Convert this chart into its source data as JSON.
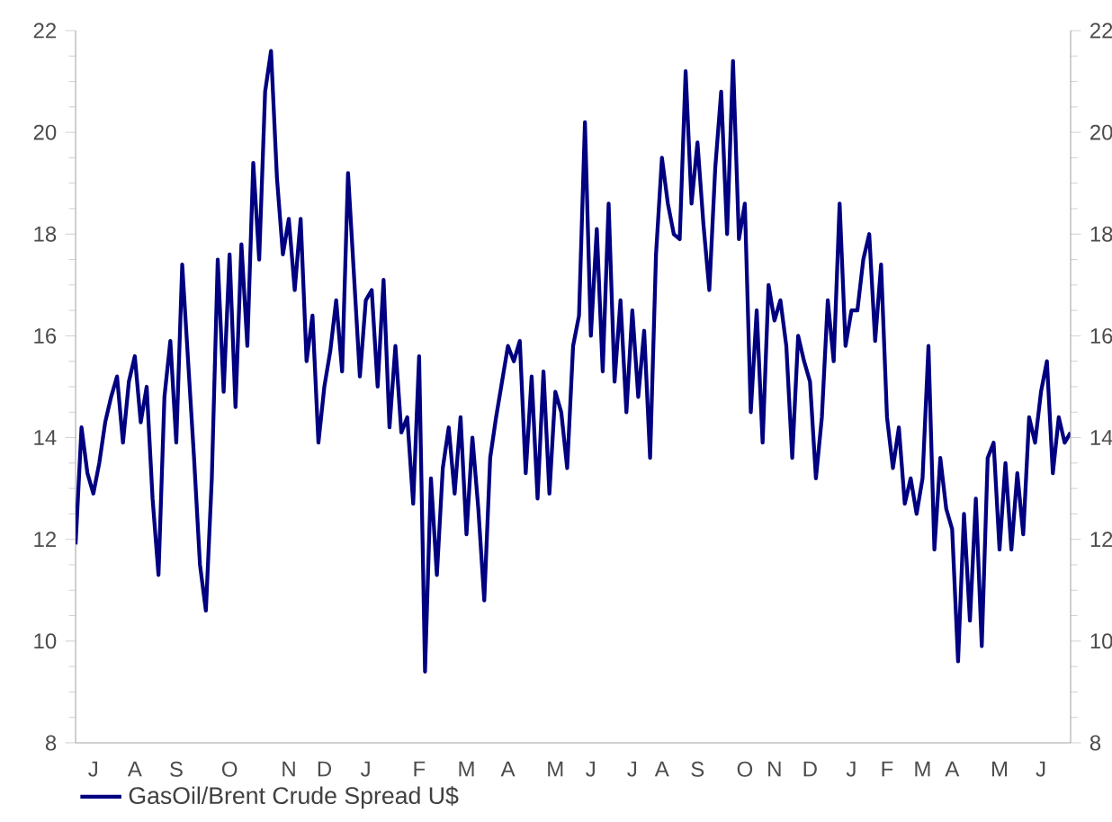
{
  "chart_data": {
    "type": "line",
    "categories": [
      null,
      null,
      null,
      "J",
      null,
      null,
      null,
      null,
      null,
      null,
      "A",
      null,
      null,
      null,
      null,
      null,
      null,
      "S",
      null,
      null,
      null,
      null,
      null,
      null,
      null,
      null,
      "O",
      null,
      null,
      null,
      null,
      null,
      null,
      null,
      null,
      null,
      "N",
      null,
      null,
      null,
      null,
      null,
      "D",
      null,
      null,
      null,
      null,
      null,
      null,
      "J",
      null,
      null,
      null,
      null,
      null,
      null,
      null,
      null,
      "F",
      null,
      null,
      null,
      null,
      null,
      null,
      null,
      "M",
      null,
      null,
      null,
      null,
      null,
      null,
      "A",
      null,
      null,
      null,
      null,
      null,
      null,
      null,
      "M",
      null,
      null,
      null,
      null,
      null,
      "J",
      null,
      null,
      null,
      null,
      null,
      null,
      "J",
      null,
      null,
      null,
      null,
      "A",
      null,
      null,
      null,
      null,
      null,
      "S",
      null,
      null,
      null,
      null,
      null,
      null,
      null,
      "O",
      null,
      null,
      null,
      null,
      "N",
      null,
      null,
      null,
      null,
      null,
      "D",
      null,
      null,
      null,
      null,
      null,
      null,
      "J",
      null,
      null,
      null,
      null,
      null,
      "F",
      null,
      null,
      null,
      null,
      null,
      "M",
      null,
      null,
      null,
      null,
      "A",
      null,
      null,
      null,
      null,
      null,
      null,
      null,
      "M",
      null,
      null,
      null,
      null,
      null,
      null,
      "J",
      null,
      null,
      null,
      null,
      null
    ],
    "series": [
      {
        "name": "GasOil/Brent Crude Spread U$",
        "color": "#000080",
        "values": [
          11.9,
          14.2,
          13.3,
          12.9,
          13.5,
          14.3,
          14.8,
          15.2,
          13.9,
          15.1,
          15.6,
          14.3,
          15.0,
          12.8,
          11.3,
          14.8,
          15.9,
          13.9,
          17.4,
          15.5,
          13.6,
          11.5,
          10.6,
          13.2,
          17.5,
          14.9,
          17.6,
          14.6,
          17.8,
          15.8,
          19.4,
          17.5,
          20.8,
          21.6,
          19.1,
          17.6,
          18.3,
          16.9,
          18.3,
          15.5,
          16.4,
          13.9,
          15.0,
          15.7,
          16.7,
          15.3,
          19.2,
          17.2,
          15.2,
          16.7,
          16.9,
          15.0,
          17.1,
          14.2,
          15.8,
          14.1,
          14.4,
          12.7,
          15.6,
          9.4,
          13.2,
          11.3,
          13.4,
          14.2,
          12.9,
          14.4,
          12.1,
          14.0,
          12.6,
          10.8,
          13.6,
          14.4,
          15.1,
          15.8,
          15.5,
          15.9,
          13.3,
          15.2,
          12.8,
          15.3,
          12.9,
          14.9,
          14.5,
          13.4,
          15.8,
          16.4,
          20.2,
          16.0,
          18.1,
          15.3,
          18.6,
          15.1,
          16.7,
          14.5,
          16.5,
          14.8,
          16.1,
          13.6,
          17.6,
          19.5,
          18.6,
          18.0,
          17.9,
          21.2,
          18.6,
          19.8,
          18.2,
          16.9,
          19.3,
          20.8,
          18.0,
          21.4,
          17.9,
          18.6,
          14.5,
          16.5,
          13.9,
          17.0,
          16.3,
          16.7,
          15.8,
          13.6,
          16.0,
          15.5,
          15.1,
          13.2,
          14.4,
          16.7,
          15.5,
          18.6,
          15.8,
          16.5,
          16.5,
          17.5,
          18.0,
          15.9,
          17.4,
          14.4,
          13.4,
          14.2,
          12.7,
          13.2,
          12.5,
          13.2,
          15.8,
          11.8,
          13.6,
          12.6,
          12.2,
          9.6,
          12.5,
          10.4,
          12.8,
          9.9,
          13.6,
          13.9,
          11.8,
          13.5,
          11.8,
          13.3,
          12.1,
          14.4,
          13.9,
          14.9,
          15.5,
          13.3,
          14.4,
          13.9,
          14.1
        ]
      }
    ],
    "ylim": [
      8,
      22
    ],
    "yticks": [
      8,
      10,
      12,
      14,
      16,
      18,
      20,
      22
    ],
    "y2lim": [
      8,
      22
    ],
    "y2ticks": [
      8,
      10,
      12,
      14,
      16,
      18,
      20,
      22
    ],
    "legend": "bottom left"
  }
}
